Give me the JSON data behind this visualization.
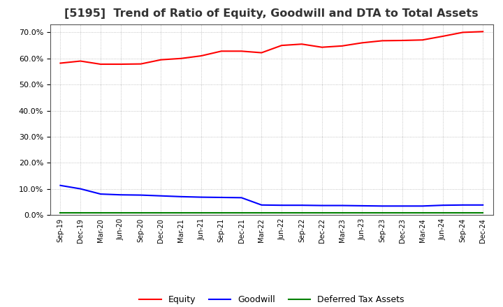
{
  "title": "[5195]  Trend of Ratio of Equity, Goodwill and DTA to Total Assets",
  "x_labels": [
    "Sep-19",
    "Dec-19",
    "Mar-20",
    "Jun-20",
    "Sep-20",
    "Dec-20",
    "Mar-21",
    "Jun-21",
    "Sep-21",
    "Dec-21",
    "Mar-22",
    "Jun-22",
    "Sep-22",
    "Dec-22",
    "Mar-23",
    "Jun-23",
    "Sep-23",
    "Dec-23",
    "Mar-24",
    "Jun-24",
    "Sep-24",
    "Dec-24"
  ],
  "equity": [
    0.582,
    0.59,
    0.578,
    0.578,
    0.579,
    0.595,
    0.6,
    0.61,
    0.628,
    0.628,
    0.622,
    0.65,
    0.655,
    0.643,
    0.648,
    0.66,
    0.668,
    0.669,
    0.671,
    0.685,
    0.7,
    0.703
  ],
  "goodwill": [
    0.113,
    0.1,
    0.08,
    0.077,
    0.076,
    0.073,
    0.07,
    0.068,
    0.067,
    0.066,
    0.038,
    0.037,
    0.037,
    0.036,
    0.036,
    0.035,
    0.034,
    0.034,
    0.034,
    0.037,
    0.038,
    0.038
  ],
  "dta": [
    0.008,
    0.008,
    0.008,
    0.008,
    0.008,
    0.008,
    0.008,
    0.008,
    0.008,
    0.008,
    0.008,
    0.008,
    0.008,
    0.008,
    0.008,
    0.008,
    0.008,
    0.008,
    0.008,
    0.008,
    0.008,
    0.008
  ],
  "equity_color": "#ff0000",
  "goodwill_color": "#0000ff",
  "dta_color": "#008000",
  "ylim": [
    0.0,
    0.73
  ],
  "yticks": [
    0.0,
    0.1,
    0.2,
    0.3,
    0.4,
    0.5,
    0.6,
    0.7
  ],
  "background_color": "#ffffff",
  "plot_bg_color": "#ffffff",
  "grid_color": "#aaaaaa",
  "title_fontsize": 11.5,
  "title_color": "#333333",
  "legend_labels": [
    "Equity",
    "Goodwill",
    "Deferred Tax Assets"
  ]
}
